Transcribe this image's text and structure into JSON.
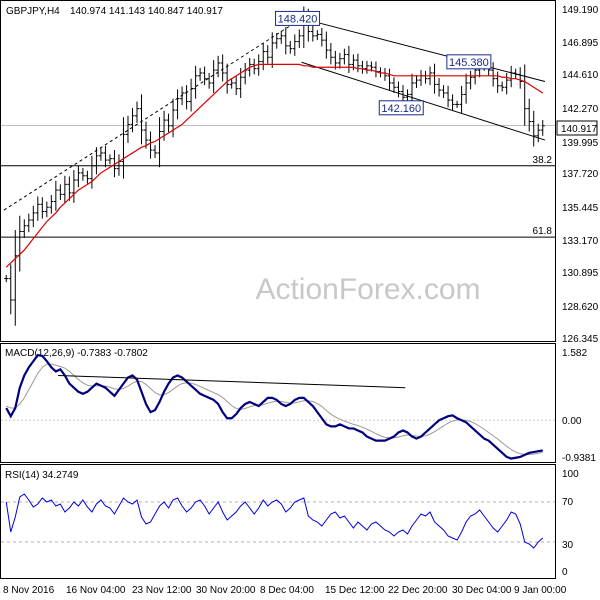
{
  "header": {
    "symbol": "GBPJPY,H4",
    "ohlc": "140.974 141.143 140.847 140.917"
  },
  "watermark": "ActionForex.com",
  "colors": {
    "price": "#000000",
    "ma": "#dd0000",
    "macd": "#000080",
    "signal": "#9a9a9a",
    "rsi": "#0000dd",
    "hline": "#000000",
    "dashed": "#000000",
    "label_box": "#1a2a8a"
  },
  "chart_data": [
    {
      "type": "line",
      "panel": "price",
      "description_label": "GBPJPY,H4",
      "current_price": 140.917,
      "current_price_label": "140.917",
      "y_ticks": [
        "149.190",
        "146.895",
        "144.610",
        "142.270",
        "139.995",
        "137.720",
        "135.445",
        "133.170",
        "130.895",
        "128.620",
        "126.345"
      ],
      "ylim": [
        125.9,
        149.5
      ],
      "x_tick_labels": [
        "8 Nov 2016",
        "16 Nov 04:00",
        "23 Nov 12:00",
        "30 Nov 20:00",
        "8 Dec 04:00",
        "15 Dec 12:00",
        "22 Dec 20:00",
        "30 Dec 04:00",
        "9 Jan 00:00"
      ],
      "n_bars": 120,
      "closes": [
        130.2,
        128.7,
        131.8,
        133.5,
        133.9,
        134.3,
        134.8,
        135.4,
        134.9,
        135.2,
        135.6,
        136.4,
        136.1,
        136.8,
        136.2,
        137.1,
        137.6,
        137.4,
        137.2,
        138.1,
        138.8,
        139.0,
        138.5,
        138.6,
        137.9,
        138.4,
        140.3,
        141.0,
        141.6,
        142.1,
        140.6,
        139.9,
        139.2,
        139.0,
        140.5,
        141.3,
        140.9,
        142.0,
        142.8,
        143.2,
        142.6,
        143.5,
        144.4,
        144.6,
        144.2,
        143.9,
        144.8,
        145.3,
        144.6,
        143.8,
        143.9,
        143.5,
        144.3,
        144.8,
        145.2,
        144.9,
        145.4,
        146.1,
        145.7,
        146.7,
        147.0,
        147.2,
        146.5,
        146.3,
        146.8,
        147.2,
        148.4,
        147.5,
        147.2,
        147.3,
        146.9,
        146.2,
        145.7,
        145.3,
        145.6,
        145.9,
        145.2,
        145.5,
        145.1,
        144.9,
        145.1,
        145.0,
        144.7,
        144.6,
        144.4,
        143.9,
        143.6,
        143.3,
        142.9,
        143.1,
        143.9,
        144.1,
        144.4,
        144.2,
        144.6,
        143.8,
        143.4,
        143.2,
        142.7,
        142.4,
        142.4,
        143.1,
        143.9,
        144.3,
        144.8,
        145.3,
        145.1,
        144.8,
        144.2,
        143.7,
        143.6,
        144.1,
        144.6,
        144.5,
        144.0,
        142.1,
        141.2,
        140.2,
        140.6,
        140.9
      ],
      "moving_average": [
        131.0,
        131.3,
        131.6,
        131.9,
        132.2,
        132.6,
        133.0,
        133.4,
        133.8,
        134.2,
        134.5,
        134.8,
        135.2,
        135.5,
        135.8,
        136.1,
        136.4,
        136.6,
        136.8,
        137.0,
        137.3,
        137.6,
        137.8,
        138.0,
        138.2,
        138.4,
        138.6,
        138.8,
        139.0,
        139.2,
        139.4,
        139.5,
        139.7,
        139.8,
        140.0,
        140.2,
        140.4,
        140.6,
        140.8,
        141.0,
        141.3,
        141.6,
        141.9,
        142.2,
        142.5,
        142.8,
        143.1,
        143.4,
        143.7,
        144.0,
        144.2,
        144.4,
        144.6,
        144.8,
        145.0,
        145.1,
        145.2,
        145.2,
        145.2,
        145.2,
        145.2,
        145.2,
        145.2,
        145.2,
        145.2,
        145.2,
        145.1,
        145.1,
        145.0,
        145.0,
        145.0,
        145.0,
        145.0,
        145.0,
        145.0,
        145.0,
        145.0,
        145.0,
        144.9,
        144.9,
        144.8,
        144.8,
        144.7,
        144.6,
        144.6,
        144.5,
        144.4,
        144.4,
        144.4,
        144.4,
        144.4,
        144.4,
        144.4,
        144.4,
        144.4,
        144.4,
        144.4,
        144.4,
        144.4,
        144.4,
        144.4,
        144.4,
        144.4,
        144.4,
        144.4,
        144.4,
        144.4,
        144.4,
        144.4,
        144.4,
        144.3,
        144.3,
        144.2,
        144.2,
        144.1,
        144.0,
        143.8,
        143.6,
        143.4,
        143.2
      ],
      "annotations": [
        {
          "label": "148.420",
          "bar": 66,
          "value": 148.42
        },
        {
          "label": "145.380",
          "bar": 104,
          "value": 145.38
        },
        {
          "label": "142.160",
          "bar": 89,
          "value": 142.16
        }
      ],
      "fib_levels": [
        {
          "label": "38.2",
          "value": 138.1
        },
        {
          "label": "61.8",
          "value": 133.1
        }
      ],
      "channel_lines": [
        {
          "style": "dashed",
          "from": {
            "bar": 0,
            "value": 135.0
          },
          "to": {
            "bar": 66,
            "value": 148.42
          }
        },
        {
          "style": "solid",
          "from": {
            "bar": 66,
            "value": 148.42
          },
          "to": {
            "bar": 120,
            "value": 144.0
          }
        },
        {
          "style": "solid",
          "from": {
            "bar": 66,
            "value": 145.35
          },
          "to": {
            "bar": 120,
            "value": 139.9
          }
        }
      ]
    },
    {
      "type": "line",
      "panel": "macd",
      "title": "MACD(12,26,9) -0.7383 -0.7802",
      "y_ticks": [
        "1.582",
        "0.00",
        "-0.9381"
      ],
      "ylim": [
        -1.0,
        1.75
      ],
      "macd": [
        0.3,
        0.1,
        0.3,
        0.8,
        1.1,
        1.3,
        1.45,
        1.6,
        1.58,
        1.45,
        1.3,
        1.2,
        1.25,
        1.1,
        0.9,
        0.8,
        0.7,
        0.65,
        0.7,
        0.8,
        0.9,
        0.85,
        0.8,
        0.7,
        0.6,
        0.75,
        0.9,
        1.05,
        1.1,
        1.0,
        0.7,
        0.4,
        0.2,
        0.25,
        0.45,
        0.7,
        0.9,
        1.05,
        1.1,
        1.05,
        0.95,
        0.85,
        0.75,
        0.65,
        0.6,
        0.55,
        0.5,
        0.4,
        0.2,
        0.05,
        0.05,
        0.15,
        0.3,
        0.4,
        0.45,
        0.4,
        0.35,
        0.45,
        0.55,
        0.55,
        0.5,
        0.4,
        0.35,
        0.4,
        0.5,
        0.55,
        0.55,
        0.45,
        0.35,
        0.2,
        0.05,
        -0.1,
        -0.15,
        -0.15,
        -0.1,
        -0.15,
        -0.2,
        -0.2,
        -0.25,
        -0.3,
        -0.4,
        -0.45,
        -0.5,
        -0.5,
        -0.5,
        -0.45,
        -0.4,
        -0.3,
        -0.25,
        -0.3,
        -0.4,
        -0.45,
        -0.4,
        -0.3,
        -0.2,
        -0.1,
        0.0,
        0.05,
        0.1,
        0.12,
        0.05,
        0.0,
        -0.05,
        -0.15,
        -0.25,
        -0.35,
        -0.45,
        -0.5,
        -0.6,
        -0.7,
        -0.8,
        -0.9,
        -0.94,
        -0.92,
        -0.9,
        -0.85,
        -0.8,
        -0.78,
        -0.76,
        -0.74
      ],
      "signal": [
        0.35,
        0.3,
        0.3,
        0.4,
        0.55,
        0.75,
        0.95,
        1.15,
        1.3,
        1.38,
        1.38,
        1.35,
        1.32,
        1.28,
        1.2,
        1.1,
        1.0,
        0.92,
        0.86,
        0.84,
        0.84,
        0.85,
        0.84,
        0.81,
        0.77,
        0.76,
        0.78,
        0.84,
        0.91,
        0.96,
        0.95,
        0.88,
        0.78,
        0.68,
        0.62,
        0.63,
        0.68,
        0.76,
        0.84,
        0.9,
        0.92,
        0.91,
        0.88,
        0.83,
        0.78,
        0.73,
        0.68,
        0.63,
        0.56,
        0.46,
        0.36,
        0.29,
        0.27,
        0.29,
        0.33,
        0.36,
        0.37,
        0.38,
        0.42,
        0.45,
        0.47,
        0.46,
        0.44,
        0.42,
        0.43,
        0.45,
        0.48,
        0.48,
        0.46,
        0.41,
        0.34,
        0.24,
        0.15,
        0.08,
        0.03,
        -0.02,
        -0.06,
        -0.1,
        -0.13,
        -0.17,
        -0.22,
        -0.27,
        -0.33,
        -0.38,
        -0.42,
        -0.43,
        -0.43,
        -0.41,
        -0.38,
        -0.36,
        -0.37,
        -0.39,
        -0.4,
        -0.38,
        -0.34,
        -0.28,
        -0.21,
        -0.14,
        -0.07,
        -0.02,
        0.01,
        0.01,
        0.0,
        -0.03,
        -0.08,
        -0.15,
        -0.22,
        -0.3,
        -0.38,
        -0.46,
        -0.55,
        -0.64,
        -0.72,
        -0.78,
        -0.82,
        -0.84,
        -0.84,
        -0.83,
        -0.81,
        -0.78
      ],
      "divergence_line": {
        "from": {
          "bar": 12,
          "value": 1.1
        },
        "to": {
          "bar": 89,
          "value": 0.8
        }
      }
    },
    {
      "type": "line",
      "panel": "rsi",
      "title": "RSI(14) 34.2749",
      "y_ticks": [
        "100",
        "70",
        "30",
        "0"
      ],
      "ylim": [
        0,
        100
      ],
      "guide_levels": [
        70,
        30
      ],
      "values": [
        70,
        40,
        55,
        75,
        78,
        72,
        65,
        68,
        74,
        70,
        72,
        66,
        68,
        60,
        64,
        70,
        66,
        72,
        65,
        60,
        68,
        72,
        66,
        64,
        58,
        66,
        74,
        70,
        68,
        72,
        55,
        48,
        50,
        58,
        66,
        70,
        64,
        72,
        74,
        66,
        60,
        64,
        70,
        72,
        66,
        58,
        64,
        70,
        60,
        52,
        56,
        60,
        66,
        70,
        64,
        58,
        64,
        72,
        66,
        70,
        72,
        68,
        60,
        64,
        70,
        72,
        74,
        56,
        52,
        50,
        46,
        52,
        58,
        60,
        54,
        56,
        50,
        44,
        50,
        46,
        42,
        48,
        50,
        46,
        42,
        40,
        36,
        40,
        42,
        38,
        46,
        52,
        58,
        56,
        60,
        50,
        46,
        42,
        36,
        34,
        32,
        40,
        50,
        56,
        58,
        62,
        56,
        50,
        44,
        40,
        46,
        52,
        60,
        58,
        48,
        30,
        28,
        24,
        30,
        34
      ]
    }
  ]
}
